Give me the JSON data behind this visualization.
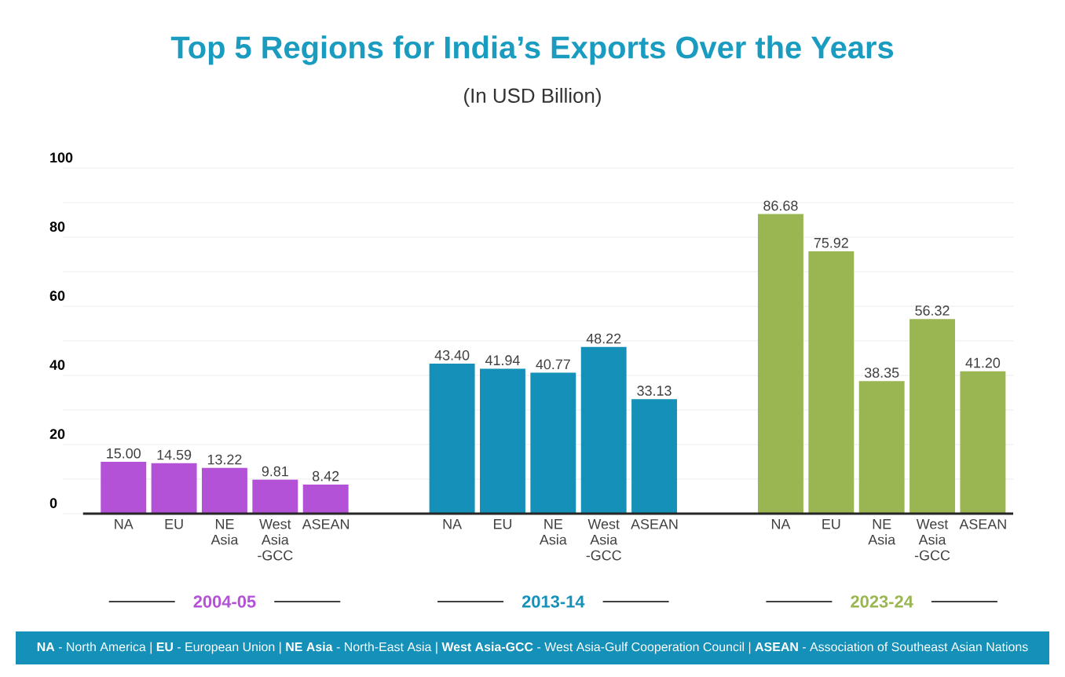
{
  "chart_data": {
    "type": "bar",
    "title": "Top 5 Regions for India’s Exports Over the Years",
    "subtitle": "(In USD Billion)",
    "categories": [
      "NA",
      "EU",
      "NE Asia",
      "West Asia -GCC",
      "ASEAN",
      "NA",
      "EU",
      "NE Asia",
      "West Asia -GCC",
      "ASEAN",
      "NA",
      "EU",
      "NE Asia",
      "West Asia -GCC",
      "ASEAN"
    ],
    "series": [
      {
        "name": "2004-05",
        "color": "#b352d6",
        "values": [
          15.0,
          14.59,
          13.22,
          9.81,
          8.42,
          null,
          null,
          null,
          null,
          null,
          null,
          null,
          null,
          null,
          null
        ],
        "value_labels": [
          "15.00",
          "14.59",
          "13.22",
          "9.81",
          "8.42",
          null,
          null,
          null,
          null,
          null,
          null,
          null,
          null,
          null,
          null
        ]
      },
      {
        "name": "2013-14",
        "color": "#1590b8",
        "values": [
          null,
          null,
          null,
          null,
          null,
          43.4,
          41.94,
          40.77,
          48.22,
          33.13,
          null,
          null,
          null,
          null,
          null
        ],
        "value_labels": [
          null,
          null,
          null,
          null,
          null,
          "43.40",
          "41.94",
          "40.77",
          "48.22",
          "33.13",
          null,
          null,
          null,
          null,
          null
        ]
      },
      {
        "name": "2023-24",
        "color": "#9ab653",
        "values": [
          null,
          null,
          null,
          null,
          null,
          null,
          null,
          null,
          null,
          null,
          86.68,
          75.92,
          38.35,
          56.32,
          41.2
        ],
        "value_labels": [
          null,
          null,
          null,
          null,
          null,
          null,
          null,
          null,
          null,
          null,
          "86.68",
          "75.92",
          "38.35",
          "56.32",
          "41.20"
        ]
      }
    ],
    "ylim": [
      0,
      100
    ],
    "yticks": [
      0,
      {
        "value": 10,
        "label": null
      },
      20,
      {
        "value": 30,
        "label": null
      },
      40,
      {
        "value": 50,
        "label": null
      },
      60,
      {
        "value": 70,
        "label": null
      },
      80,
      {
        "value": 90,
        "label": null
      },
      100
    ],
    "grid": "y",
    "legend": false,
    "annotations": [
      "**NA** - North America  |  **EU** - European Union  |  **NE Asia** - North-East Asia  |  **West Asia-GCC** - West Asia-Gulf Cooperation Council  |  **ASEAN** - Association of Southeast Asian Nations"
    ]
  }
}
